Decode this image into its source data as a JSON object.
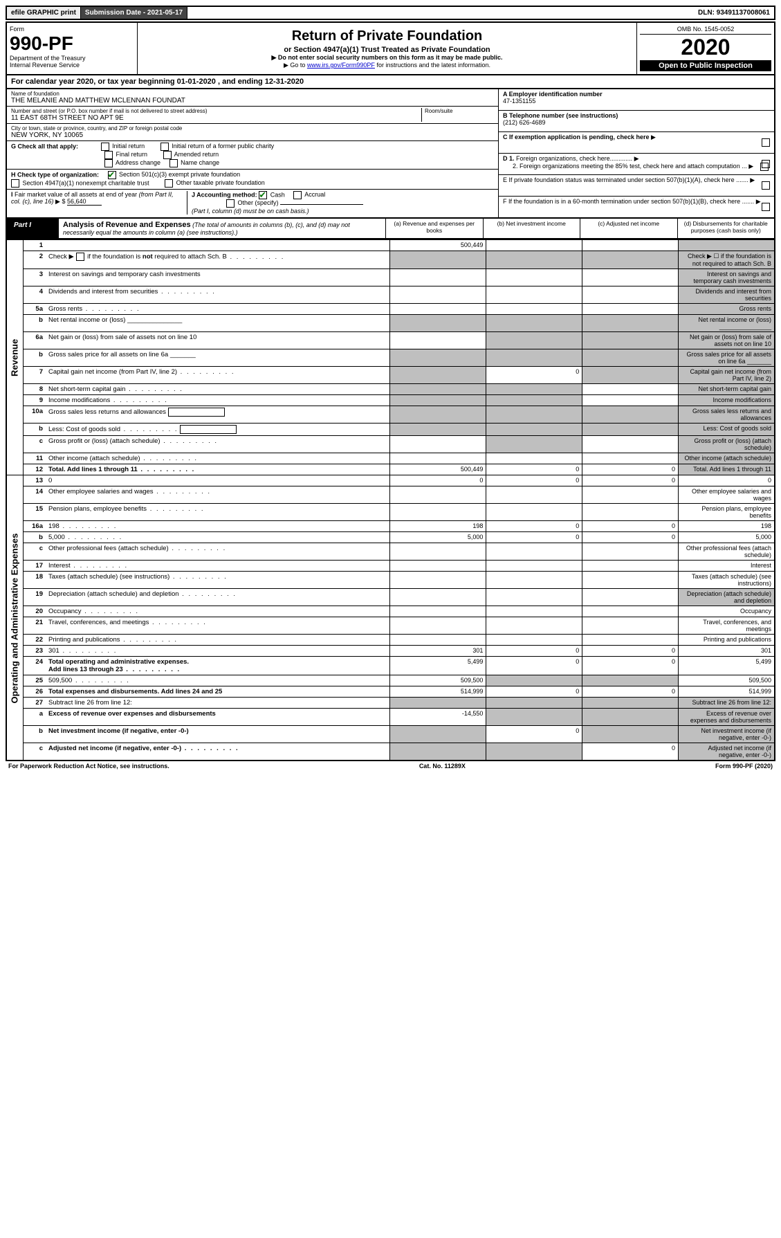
{
  "top": {
    "efile": "efile GRAPHIC print",
    "submission": "Submission Date - 2021-05-17",
    "dln": "DLN: 93491137008061"
  },
  "header": {
    "form": "Form",
    "number": "990-PF",
    "dept": "Department of the Treasury\nInternal Revenue Service",
    "title": "Return of Private Foundation",
    "subtitle": "or Section 4947(a)(1) Trust Treated as Private Foundation",
    "inst1": "▶ Do not enter social security numbers on this form as it may be made public.",
    "inst2": "▶ Go to www.irs.gov/Form990PF for instructions and the latest information.",
    "omb": "OMB No. 1545-0052",
    "year": "2020",
    "open": "Open to Public Inspection"
  },
  "cal": "For calendar year 2020, or tax year beginning 01-01-2020                       , and ending 12-31-2020",
  "info": {
    "name_lbl": "Name of foundation",
    "name": "THE MELANIE AND MATTHEW MCLENNAN FOUNDAT",
    "addr_lbl": "Number and street (or P.O. box number if mail is not delivered to street address)",
    "addr": "11 EAST 68TH STREET NO APT 9E",
    "room_lbl": "Room/suite",
    "city_lbl": "City or town, state or province, country, and ZIP or foreign postal code",
    "city": "NEW YORK, NY  10065",
    "a_lbl": "A Employer identification number",
    "a_val": "47-1351155",
    "b_lbl": "B Telephone number (see instructions)",
    "b_val": "(212) 626-4689",
    "c_lbl": "C If exemption application is pending, check here",
    "d1": "D 1. Foreign organizations, check here.............",
    "d2": "2. Foreign organizations meeting the 85% test, check here and attach computation ...",
    "e_lbl": "E   If private foundation status was terminated under section 507(b)(1)(A), check here .......",
    "f_lbl": "F   If the foundation is in a 60-month termination under section 507(b)(1)(B), check here ......."
  },
  "g": {
    "label": "G Check all that apply:",
    "opts": [
      "Initial return",
      "Initial return of a former public charity",
      "Final return",
      "Amended return",
      "Address change",
      "Name change"
    ]
  },
  "h": {
    "label": "H Check type of organization:",
    "opt1": "Section 501(c)(3) exempt private foundation",
    "opt2": "Section 4947(a)(1) nonexempt charitable trust",
    "opt3": "Other taxable private foundation"
  },
  "i": {
    "label": "I Fair market value of all assets at end of year (from Part II, col. (c), line 16) ▶ $",
    "value": "56,640"
  },
  "j": {
    "label": "J Accounting method:",
    "cash": "Cash",
    "accrual": "Accrual",
    "other": "Other (specify)",
    "note": "(Part I, column (d) must be on cash basis.)"
  },
  "part1": {
    "label": "Part I",
    "title": "Analysis of Revenue and Expenses",
    "title_note": "(The total of amounts in columns (b), (c), and (d) may not necessarily equal the amounts in column (a) (see instructions).)",
    "col_a": "(a) Revenue and expenses per books",
    "col_b": "(b) Net investment income",
    "col_c": "(c) Adjusted net income",
    "col_d": "(d) Disbursements for charitable purposes (cash basis only)"
  },
  "sections": {
    "revenue": "Revenue",
    "expenses": "Operating and Administrative Expenses"
  },
  "rows": [
    {
      "n": "1",
      "d": "",
      "a": "500,449",
      "b": "",
      "c": "",
      "shade": [
        "d"
      ]
    },
    {
      "n": "2",
      "d": "Check ▶ ☐ if the foundation is not required to attach Sch. B",
      "dots": true,
      "a": "",
      "shade": [
        "a",
        "b",
        "c",
        "d"
      ]
    },
    {
      "n": "3",
      "d": "Interest on savings and temporary cash investments",
      "a": "",
      "shade": [
        "d"
      ]
    },
    {
      "n": "4",
      "d": "Dividends and interest from securities",
      "dots": true,
      "a": "",
      "shade": [
        "d"
      ]
    },
    {
      "n": "5a",
      "d": "Gross rents",
      "dots": true,
      "a": "",
      "shade": [
        "d"
      ]
    },
    {
      "n": "b",
      "d": "Net rental income or (loss) _______________",
      "a": "",
      "shade": [
        "a",
        "b",
        "c",
        "d"
      ]
    },
    {
      "n": "6a",
      "d": "Net gain or (loss) from sale of assets not on line 10",
      "a": "",
      "shade": [
        "b",
        "c",
        "d"
      ]
    },
    {
      "n": "b",
      "d": "Gross sales price for all assets on line 6a _______",
      "a": "",
      "shade": [
        "a",
        "b",
        "c",
        "d"
      ]
    },
    {
      "n": "7",
      "d": "Capital gain net income (from Part IV, line 2)",
      "dots": true,
      "a": "",
      "b": "0",
      "shade": [
        "a",
        "c",
        "d"
      ]
    },
    {
      "n": "8",
      "d": "Net short-term capital gain",
      "dots": true,
      "a": "",
      "shade": [
        "a",
        "b",
        "d"
      ]
    },
    {
      "n": "9",
      "d": "Income modifications",
      "dots": true,
      "a": "",
      "shade": [
        "a",
        "b",
        "d"
      ]
    },
    {
      "n": "10a",
      "d": "Gross sales less returns and allowances",
      "box": true,
      "a": "",
      "shade": [
        "a",
        "b",
        "c",
        "d"
      ]
    },
    {
      "n": "b",
      "d": "Less: Cost of goods sold",
      "dots": true,
      "box": true,
      "a": "",
      "shade": [
        "a",
        "b",
        "c",
        "d"
      ]
    },
    {
      "n": "c",
      "d": "Gross profit or (loss) (attach schedule)",
      "dots": true,
      "a": "",
      "shade": [
        "b",
        "d"
      ]
    },
    {
      "n": "11",
      "d": "Other income (attach schedule)",
      "dots": true,
      "a": "",
      "shade": [
        "d"
      ]
    },
    {
      "n": "12",
      "d": "Total. Add lines 1 through 11",
      "dots": true,
      "bold": true,
      "a": "500,449",
      "b": "0",
      "c": "0",
      "shade": [
        "d"
      ]
    },
    {
      "n": "13",
      "d": "0",
      "a": "0",
      "b": "0",
      "c": "0",
      "sec": "exp"
    },
    {
      "n": "14",
      "d": "Other employee salaries and wages",
      "dots": true,
      "sec": "exp"
    },
    {
      "n": "15",
      "d": "Pension plans, employee benefits",
      "dots": true,
      "sec": "exp"
    },
    {
      "n": "16a",
      "d": "198",
      "dots": true,
      "a": "198",
      "b": "0",
      "c": "0",
      "sec": "exp"
    },
    {
      "n": "b",
      "d": "5,000",
      "dots": true,
      "a": "5,000",
      "b": "0",
      "c": "0",
      "sec": "exp"
    },
    {
      "n": "c",
      "d": "Other professional fees (attach schedule)",
      "dots": true,
      "sec": "exp"
    },
    {
      "n": "17",
      "d": "Interest",
      "dots": true,
      "sec": "exp"
    },
    {
      "n": "18",
      "d": "Taxes (attach schedule) (see instructions)",
      "dots": true,
      "sec": "exp"
    },
    {
      "n": "19",
      "d": "Depreciation (attach schedule) and depletion",
      "dots": true,
      "sec": "exp",
      "shade": [
        "d"
      ]
    },
    {
      "n": "20",
      "d": "Occupancy",
      "dots": true,
      "sec": "exp"
    },
    {
      "n": "21",
      "d": "Travel, conferences, and meetings",
      "dots": true,
      "sec": "exp"
    },
    {
      "n": "22",
      "d": "Printing and publications",
      "dots": true,
      "sec": "exp"
    },
    {
      "n": "23",
      "d": "301",
      "dots": true,
      "a": "301",
      "b": "0",
      "c": "0",
      "sec": "exp"
    },
    {
      "n": "24",
      "d": "5,499",
      "dots": true,
      "bold": true,
      "a": "5,499",
      "b": "0",
      "c": "0",
      "sec": "exp"
    },
    {
      "n": "25",
      "d": "509,500",
      "dots": true,
      "a": "509,500",
      "sec": "exp",
      "shade": [
        "b",
        "c"
      ]
    },
    {
      "n": "26",
      "d": "514,999",
      "bold": true,
      "a": "514,999",
      "b": "0",
      "c": "0",
      "sec": "exp"
    },
    {
      "n": "27",
      "d": "Subtract line 26 from line 12:",
      "sec": "exp",
      "shade": [
        "a",
        "b",
        "c",
        "d"
      ]
    },
    {
      "n": "a",
      "d": "Excess of revenue over expenses and disbursements",
      "bold": true,
      "a": "-14,550",
      "sec": "exp",
      "shade": [
        "b",
        "c",
        "d"
      ]
    },
    {
      "n": "b",
      "d": "Net investment income (if negative, enter -0-)",
      "bold": true,
      "b": "0",
      "sec": "exp",
      "shade": [
        "a",
        "c",
        "d"
      ]
    },
    {
      "n": "c",
      "d": "Adjusted net income (if negative, enter -0-)",
      "dots": true,
      "bold": true,
      "c": "0",
      "sec": "exp",
      "shade": [
        "a",
        "b",
        "d"
      ]
    }
  ],
  "footer": {
    "left": "For Paperwork Reduction Act Notice, see instructions.",
    "center": "Cat. No. 11289X",
    "right": "Form 990-PF (2020)"
  }
}
